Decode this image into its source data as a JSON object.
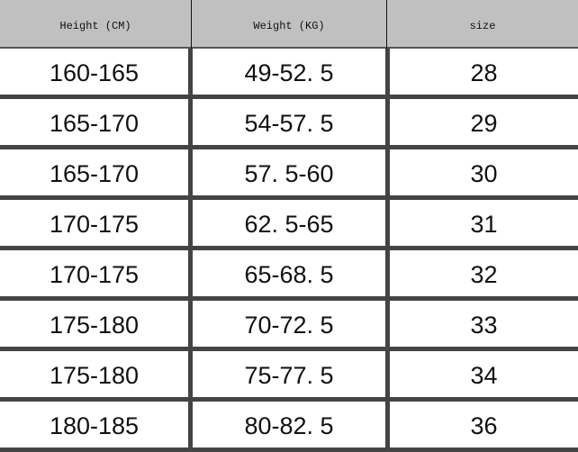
{
  "table": {
    "headers": [
      "Height (CM)",
      "Weight (KG)",
      "size"
    ],
    "rows": [
      [
        "160-165",
        "49-52. 5",
        "28"
      ],
      [
        "165-170",
        "54-57. 5",
        "29"
      ],
      [
        "165-170",
        "57. 5-60",
        "30"
      ],
      [
        "170-175",
        "62. 5-65",
        "31"
      ],
      [
        "170-175",
        "65-68. 5",
        "32"
      ],
      [
        "175-180",
        "70-72. 5",
        "33"
      ],
      [
        "175-180",
        "75-77. 5",
        "34"
      ],
      [
        "180-185",
        "80-82. 5",
        "36"
      ]
    ]
  },
  "colors": {
    "header_bg": "#c0c0c0",
    "grid": "#444444"
  }
}
